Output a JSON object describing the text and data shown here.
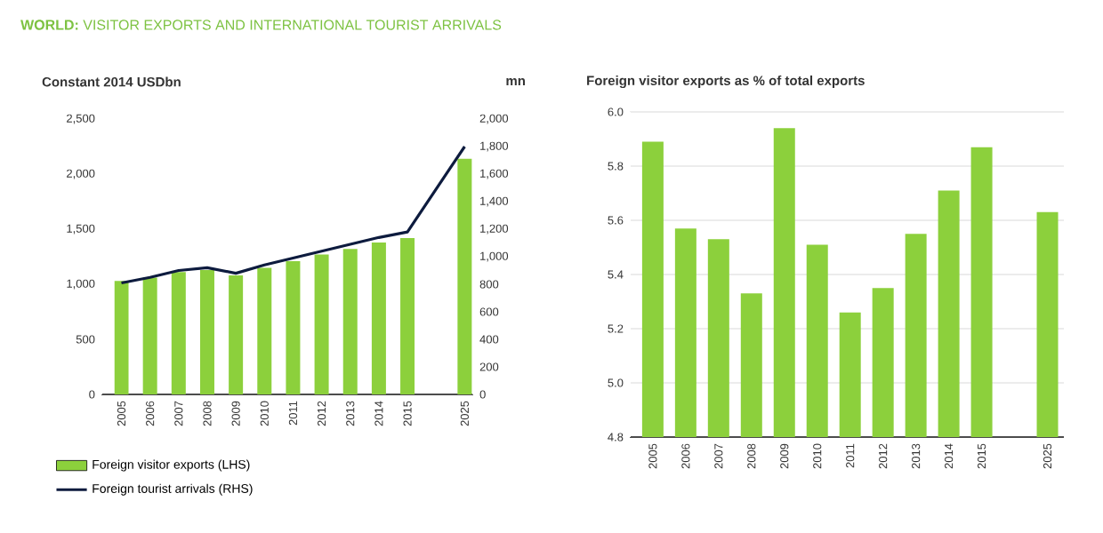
{
  "chart_data": [
    {
      "type": "bar",
      "title": "**WORLD:** VISITOR EXPORTS AND INTERNATIONAL TOURIST ARRIVALS",
      "ylabel": "Constant 2014 USDbn",
      "y2label": "mn",
      "categories": [
        "2005",
        "2006",
        "2007",
        "2008",
        "2009",
        "2010",
        "2011",
        "2012",
        "2013",
        "2014",
        "2015",
        null,
        "2025"
      ],
      "series": [
        {
          "name": "Foreign visitor exports (LHS)",
          "type": "bar",
          "color": "#8cd03c",
          "values": [
            1030,
            1060,
            1110,
            1130,
            1080,
            1150,
            1210,
            1270,
            1320,
            1380,
            1420,
            null,
            2140
          ]
        },
        {
          "name": "Foreign tourist arrivals (RHS)",
          "type": "line",
          "axis": "y2",
          "color": "#0d1b3e",
          "values": [
            810,
            850,
            900,
            920,
            880,
            940,
            990,
            1040,
            1090,
            1140,
            1180,
            null,
            1800
          ]
        }
      ],
      "ylim": [
        0,
        2500
      ],
      "yticks": [
        {
          "value": 0,
          "label": "0"
        },
        {
          "value": 500,
          "label": "500"
        },
        {
          "value": 1000,
          "label": "1,000"
        },
        {
          "value": 1500,
          "label": "1,500"
        },
        {
          "value": 2000,
          "label": "2,000"
        },
        {
          "value": 2500,
          "label": "2,500"
        }
      ],
      "y2lim": [
        0,
        2000
      ],
      "y2ticks": [
        {
          "value": 0,
          "label": "0"
        },
        {
          "value": 200,
          "label": "200"
        },
        {
          "value": 400,
          "label": "400"
        },
        {
          "value": 600,
          "label": "600"
        },
        {
          "value": 800,
          "label": "800"
        },
        {
          "value": 1000,
          "label": "1,000"
        },
        {
          "value": 1200,
          "label": "1,200"
        },
        {
          "value": 1400,
          "label": "1,400"
        },
        {
          "value": 1600,
          "label": "1,600"
        },
        {
          "value": 1800,
          "label": "1,800"
        },
        {
          "value": 2000,
          "label": "2,000"
        }
      ],
      "legend": "bottom"
    },
    {
      "type": "bar",
      "title": "Foreign visitor exports as % of total exports",
      "categories": [
        "2005",
        "2006",
        "2007",
        "2008",
        "2009",
        "2010",
        "2011",
        "2012",
        "2013",
        "2014",
        "2015",
        null,
        "2025"
      ],
      "values": [
        5.89,
        5.57,
        5.53,
        5.33,
        5.94,
        5.51,
        5.26,
        5.35,
        5.55,
        5.71,
        5.87,
        null,
        5.63
      ],
      "color": "#8cd03c",
      "ylim": [
        4.8,
        6.0
      ],
      "yticks": [
        {
          "value": 4.8,
          "label": "4.8"
        },
        {
          "value": 5,
          "label": "5.0"
        },
        {
          "value": 5.2,
          "label": "5.2"
        },
        {
          "value": 5.4,
          "label": "5.4"
        },
        {
          "value": 5.6,
          "label": "5.6"
        },
        {
          "value": 5.8,
          "label": "5.8"
        },
        {
          "value": 6,
          "label": "6.0"
        }
      ],
      "grid": "y"
    }
  ]
}
